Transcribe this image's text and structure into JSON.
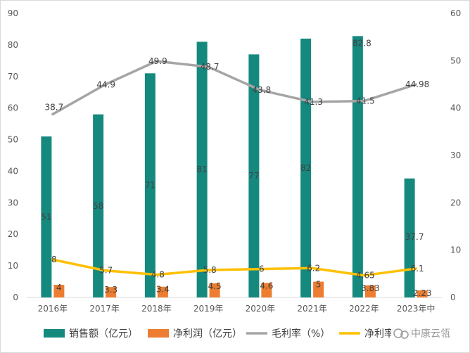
{
  "chart_data": {
    "type": "bar",
    "categories": [
      "2016年",
      "2017年",
      "2018年",
      "2019年",
      "2020年",
      "2021年",
      "2022年",
      "2023年中"
    ],
    "series": [
      {
        "name": "销售额（亿元）",
        "type": "bar",
        "axis": "left",
        "values": [
          51,
          58,
          71,
          81,
          77,
          82,
          82.8,
          37.7
        ],
        "labels": [
          "51",
          "58",
          "71",
          "81",
          "77",
          "82",
          "82.8",
          "37.7"
        ],
        "color": "#16897F"
      },
      {
        "name": "净利润（亿元）",
        "type": "bar",
        "axis": "left",
        "values": [
          4,
          3.3,
          3.4,
          4.5,
          4.6,
          5,
          3.83,
          2.23
        ],
        "labels": [
          "4",
          "3.3",
          "3.4",
          "4.5",
          "4.6",
          "5",
          "3.83",
          "2.23"
        ],
        "color": "#ED7D31"
      },
      {
        "name": "毛利率（%）",
        "type": "line",
        "axis": "right",
        "values": [
          38.7,
          44.9,
          49.9,
          48.7,
          43.8,
          41.3,
          41.5,
          44.98
        ],
        "labels": [
          "38.7",
          "44.9",
          "49.9",
          "48.7",
          "43.8",
          "41.3",
          "41.5",
          "44.98"
        ],
        "color": "#A5A5A5"
      },
      {
        "name": "净利率（%）",
        "type": "line",
        "axis": "right",
        "values": [
          8,
          5.7,
          4.8,
          5.8,
          6,
          6.2,
          4.65,
          6.1
        ],
        "labels": [
          "8",
          "5.7",
          "4.8",
          "5.8",
          "6",
          "6.2",
          "4.65",
          "6.1"
        ],
        "color": "#FFC000"
      }
    ],
    "y_left": {
      "min": 0,
      "max": 90,
      "ticks": [
        "0",
        "10",
        "20",
        "30",
        "40",
        "50",
        "60",
        "70",
        "80",
        "90"
      ]
    },
    "y_right": {
      "min": 0,
      "max": 60,
      "ticks": [
        "0",
        "10",
        "20",
        "30",
        "40",
        "50",
        "60"
      ]
    },
    "legend_position": "bottom",
    "grid": false
  },
  "watermark": "中康云瓴"
}
